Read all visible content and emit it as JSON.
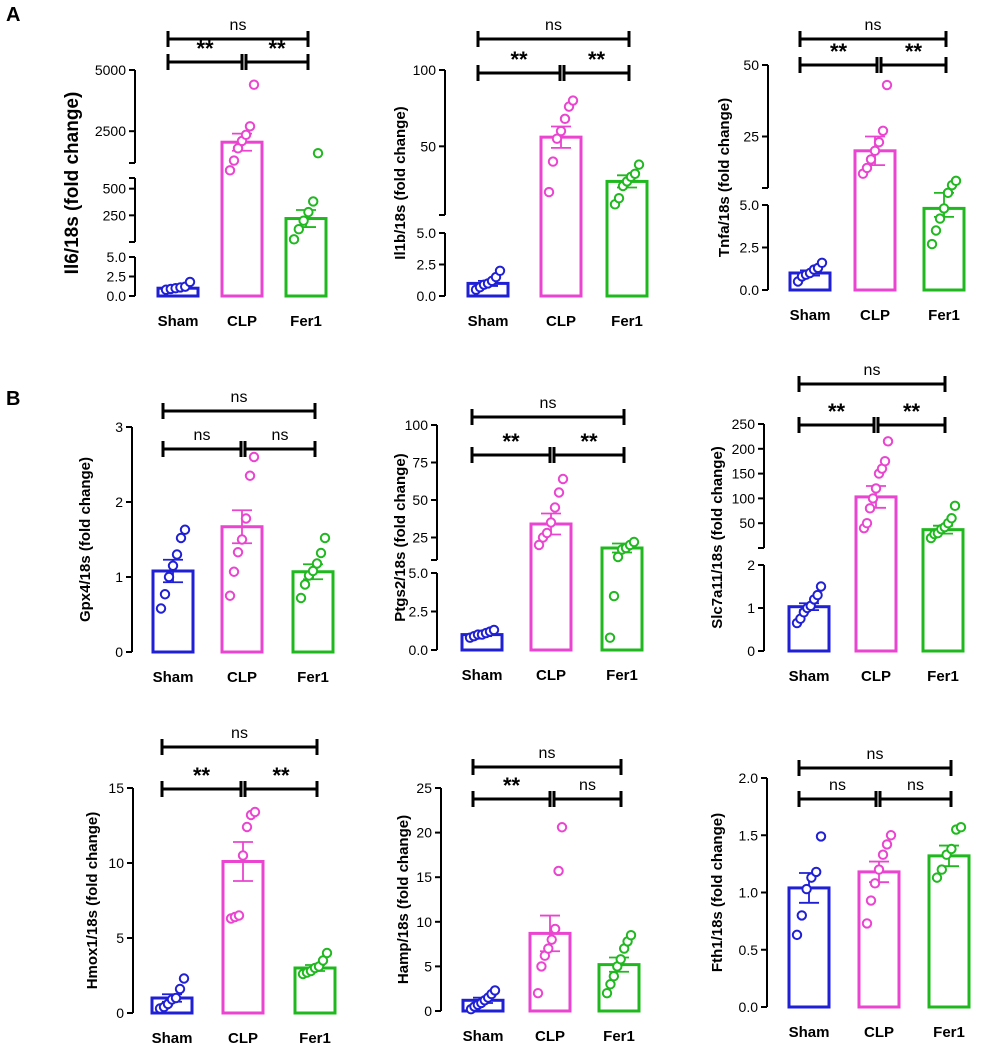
{
  "panel_labels": [
    "A",
    "B"
  ],
  "groups": [
    "Sham",
    "CLP",
    "Fer1"
  ],
  "colors": {
    "Sham": "#1f1fd6",
    "CLP": "#ea44d0",
    "Fer1": "#1fb81f",
    "axis": "#000000"
  },
  "chart_data": [
    {
      "type": "bar",
      "id": "il6",
      "ylabel": "Il6/18s (fold change)",
      "categories": [
        "Sham",
        "CLP",
        "Fer1"
      ],
      "broken_axis": true,
      "segments": [
        {
          "range": [
            0,
            5
          ],
          "ticks": [
            "0.0",
            "2.5",
            "5.0"
          ]
        },
        {
          "range": [
            0,
            600
          ],
          "ticks": [
            "250",
            "500"
          ]
        },
        {
          "range": [
            1200,
            5000
          ],
          "ticks": [
            "2500",
            "5000"
          ]
        }
      ],
      "means": [
        1,
        2050,
        220
      ],
      "sem": [
        0.15,
        350,
        80
      ],
      "points": [
        [
          0.8,
          0.9,
          1.0,
          1.1,
          1.2,
          1.8
        ],
        [
          900,
          1300,
          1800,
          2100,
          2350,
          2700,
          4400
        ],
        [
          25,
          120,
          200,
          280,
          380,
          1600
        ]
      ],
      "comparisons": [
        {
          "pair": [
            "Sham",
            "CLP"
          ],
          "label": "**"
        },
        {
          "pair": [
            "CLP",
            "Fer1"
          ],
          "label": "**"
        },
        {
          "pair": [
            "Sham",
            "Fer1"
          ],
          "label": "ns"
        }
      ]
    },
    {
      "type": "bar",
      "id": "il1b",
      "ylabel": "Il1b/18s (fold change)",
      "categories": [
        "Sham",
        "CLP",
        "Fer1"
      ],
      "broken_axis": true,
      "segments": [
        {
          "range": [
            0,
            5
          ],
          "ticks": [
            "0.0",
            "2.5",
            "5.0"
          ]
        },
        {
          "range": [
            5,
            100
          ],
          "ticks": [
            "50",
            "100"
          ]
        }
      ],
      "means": [
        1,
        56,
        27
      ],
      "sem": [
        0.2,
        7,
        4
      ],
      "points": [
        [
          0.5,
          0.7,
          0.9,
          1.0,
          1.2,
          1.5,
          2.0
        ],
        [
          20,
          40,
          55,
          60,
          68,
          76,
          80
        ],
        [
          12,
          16,
          24,
          27,
          30,
          32,
          38
        ]
      ],
      "comparisons": [
        {
          "pair": [
            "Sham",
            "CLP"
          ],
          "label": "**"
        },
        {
          "pair": [
            "CLP",
            "Fer1"
          ],
          "label": "**"
        },
        {
          "pair": [
            "Sham",
            "Fer1"
          ],
          "label": "ns"
        }
      ]
    },
    {
      "type": "bar",
      "id": "tnfa",
      "ylabel": "Tnfa/18s (fold change)",
      "categories": [
        "Sham",
        "CLP",
        "Fer1"
      ],
      "broken_axis": true,
      "segments": [
        {
          "range": [
            0,
            5
          ],
          "ticks": [
            "0.0",
            "2.5",
            "5.0"
          ]
        },
        {
          "range": [
            7,
            50
          ],
          "ticks": [
            "25",
            "50"
          ]
        }
      ],
      "means": [
        1,
        20,
        4.8
      ],
      "sem": [
        0.15,
        5,
        0.5
      ],
      "points": [
        [
          0.5,
          0.8,
          0.9,
          1.0,
          1.2,
          1.3,
          1.6
        ],
        [
          12,
          14,
          17,
          20,
          23,
          27,
          43
        ],
        [
          2.7,
          3.5,
          4.2,
          4.8,
          5.3,
          8,
          9.5
        ]
      ],
      "comparisons": [
        {
          "pair": [
            "Sham",
            "CLP"
          ],
          "label": "**"
        },
        {
          "pair": [
            "CLP",
            "Fer1"
          ],
          "label": "**"
        },
        {
          "pair": [
            "Sham",
            "Fer1"
          ],
          "label": "ns"
        }
      ]
    },
    {
      "type": "bar",
      "id": "gpx4",
      "ylabel": "Gpx4/18s (fold change)",
      "categories": [
        "Sham",
        "CLP",
        "Fer1"
      ],
      "ylim": [
        0,
        3
      ],
      "ticks": [
        "0",
        "1",
        "2",
        "3"
      ],
      "means": [
        1.08,
        1.67,
        1.07
      ],
      "sem": [
        0.15,
        0.22,
        0.1
      ],
      "points": [
        [
          0.58,
          0.77,
          1.0,
          1.15,
          1.3,
          1.52,
          1.63
        ],
        [
          0.75,
          1.07,
          1.33,
          1.5,
          1.78,
          2.35,
          2.6
        ],
        [
          0.72,
          0.9,
          1.02,
          1.08,
          1.18,
          1.32,
          1.52
        ]
      ],
      "comparisons": [
        {
          "pair": [
            "Sham",
            "CLP"
          ],
          "label": "ns"
        },
        {
          "pair": [
            "CLP",
            "Fer1"
          ],
          "label": "ns"
        },
        {
          "pair": [
            "Sham",
            "Fer1"
          ],
          "label": "ns"
        }
      ]
    },
    {
      "type": "bar",
      "id": "ptgs2",
      "ylabel": "Ptgs2/18s (fold change)",
      "categories": [
        "Sham",
        "CLP",
        "Fer1"
      ],
      "broken_axis": true,
      "segments": [
        {
          "range": [
            0,
            5
          ],
          "ticks": [
            "0.0",
            "2.5",
            "5.0"
          ]
        },
        {
          "range": [
            10,
            100
          ],
          "ticks": [
            "25",
            "50",
            "75",
            "100"
          ]
        }
      ],
      "means": [
        1,
        34,
        18
      ],
      "sem": [
        0.1,
        7,
        3
      ],
      "points": [
        [
          0.8,
          0.9,
          1.0,
          1.0,
          1.1,
          1.2,
          1.3
        ],
        [
          20,
          25,
          28,
          35,
          45,
          55,
          64
        ],
        [
          0.8,
          3.5,
          12,
          17,
          18,
          20,
          22
        ]
      ],
      "comparisons": [
        {
          "pair": [
            "Sham",
            "CLP"
          ],
          "label": "**"
        },
        {
          "pair": [
            "CLP",
            "Fer1"
          ],
          "label": "**"
        },
        {
          "pair": [
            "Sham",
            "Fer1"
          ],
          "label": "ns"
        }
      ]
    },
    {
      "type": "bar",
      "id": "slc7a11",
      "ylabel": "Slc7a11/18s (fold change)",
      "categories": [
        "Sham",
        "CLP",
        "Fer1"
      ],
      "broken_axis": true,
      "segments": [
        {
          "range": [
            0,
            2
          ],
          "ticks": [
            "0",
            "1",
            "2"
          ]
        },
        {
          "range": [
            0,
            250
          ],
          "ticks": [
            "50",
            "100",
            "150",
            "200",
            "250"
          ]
        }
      ],
      "means": [
        1.03,
        103,
        37
      ],
      "sem": [
        0.08,
        22,
        8
      ],
      "points": [
        [
          0.65,
          0.75,
          0.9,
          1.0,
          1.05,
          1.2,
          1.3,
          1.5
        ],
        [
          40,
          50,
          80,
          100,
          120,
          150,
          160,
          175,
          215
        ],
        [
          20,
          28,
          30,
          38,
          42,
          50,
          60,
          85
        ]
      ],
      "comparisons": [
        {
          "pair": [
            "Sham",
            "CLP"
          ],
          "label": "**"
        },
        {
          "pair": [
            "CLP",
            "Fer1"
          ],
          "label": "**"
        },
        {
          "pair": [
            "Sham",
            "Fer1"
          ],
          "label": "ns"
        }
      ]
    },
    {
      "type": "bar",
      "id": "hmox1",
      "ylabel": "Hmox1/18s (fold change)",
      "categories": [
        "Sham",
        "CLP",
        "Fer1"
      ],
      "ylim": [
        0,
        15
      ],
      "ticks": [
        "0",
        "5",
        "10",
        "15"
      ],
      "means": [
        1,
        10.1,
        3
      ],
      "sem": [
        0.25,
        1.3,
        0.2
      ],
      "points": [
        [
          0.3,
          0.4,
          0.6,
          0.9,
          1.0,
          1.6,
          2.3
        ],
        [
          6.3,
          6.4,
          6.5,
          10.5,
          12.4,
          13.2,
          13.4
        ],
        [
          2.6,
          2.7,
          2.8,
          3.0,
          3.1,
          3.5,
          4.0
        ]
      ],
      "comparisons": [
        {
          "pair": [
            "Sham",
            "CLP"
          ],
          "label": "**"
        },
        {
          "pair": [
            "CLP",
            "Fer1"
          ],
          "label": "**"
        },
        {
          "pair": [
            "Sham",
            "Fer1"
          ],
          "label": "ns"
        }
      ]
    },
    {
      "type": "bar",
      "id": "hamp",
      "ylabel": "Hamp/18s (fold change)",
      "categories": [
        "Sham",
        "CLP",
        "Fer1"
      ],
      "ylim": [
        0,
        25
      ],
      "ticks": [
        "0",
        "5",
        "10",
        "15",
        "20",
        "25"
      ],
      "means": [
        1.2,
        8.7,
        5.2
      ],
      "sem": [
        0.3,
        2.0,
        0.8
      ],
      "points": [
        [
          0.2,
          0.5,
          0.7,
          0.9,
          1.2,
          1.5,
          1.9,
          2.3
        ],
        [
          2.0,
          5.0,
          6.2,
          7.0,
          8.0,
          9.2,
          15.7,
          20.6
        ],
        [
          2.0,
          3.0,
          3.9,
          5.0,
          5.8,
          7.0,
          7.8,
          8.5
        ]
      ],
      "comparisons": [
        {
          "pair": [
            "Sham",
            "CLP"
          ],
          "label": "**"
        },
        {
          "pair": [
            "CLP",
            "Fer1"
          ],
          "label": "ns"
        },
        {
          "pair": [
            "Sham",
            "Fer1"
          ],
          "label": "ns"
        }
      ]
    },
    {
      "type": "bar",
      "id": "fth1",
      "ylabel": "Fth1/18s (fold change)",
      "categories": [
        "Sham",
        "CLP",
        "Fer1"
      ],
      "ylim": [
        0,
        2
      ],
      "ticks": [
        "0.0",
        "0.5",
        "1.0",
        "1.5",
        "2.0"
      ],
      "means": [
        1.04,
        1.18,
        1.32
      ],
      "sem": [
        0.13,
        0.09,
        0.09
      ],
      "points": [
        [
          0.63,
          0.8,
          1.03,
          1.13,
          1.18,
          1.49
        ],
        [
          0.73,
          0.93,
          1.08,
          1.2,
          1.33,
          1.42,
          1.5
        ],
        [
          1.13,
          1.2,
          1.33,
          1.38,
          1.55,
          1.57
        ]
      ],
      "comparisons": [
        {
          "pair": [
            "Sham",
            "CLP"
          ],
          "label": "ns"
        },
        {
          "pair": [
            "CLP",
            "Fer1"
          ],
          "label": "ns"
        },
        {
          "pair": [
            "Sham",
            "Fer1"
          ],
          "label": "ns"
        }
      ]
    }
  ]
}
